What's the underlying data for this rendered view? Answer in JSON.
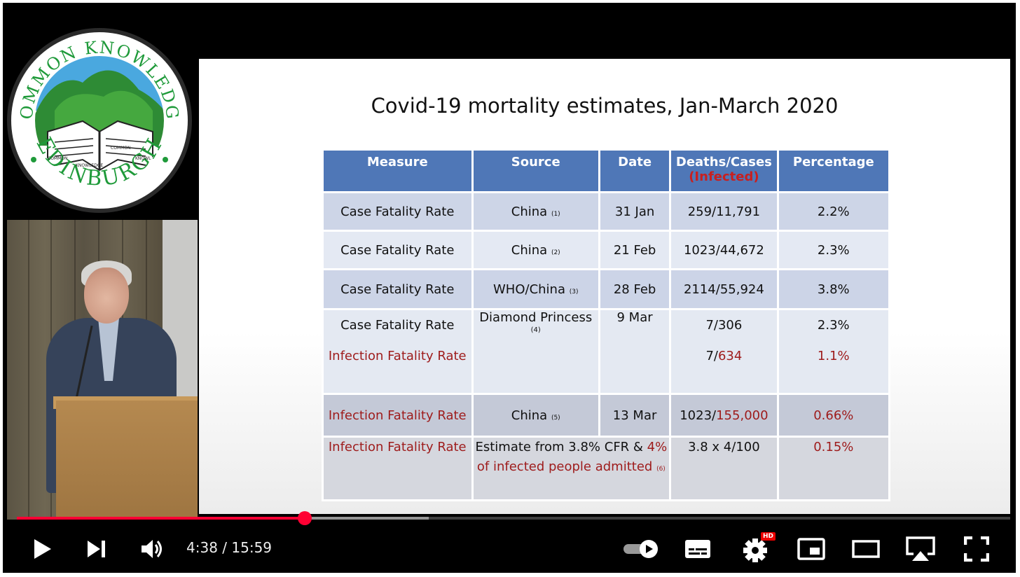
{
  "player": {
    "time_current": "4:38",
    "time_separator": " / ",
    "time_total": "15:59",
    "progress": 0.29,
    "buffered": 0.415,
    "quality_badge": "HD",
    "accent_color": "#ff0033",
    "icons": [
      "play-icon",
      "next-icon",
      "volume-icon",
      "autoplay-toggle-icon",
      "subtitles-icon",
      "settings-icon",
      "miniplayer-icon",
      "theater-icon",
      "airplay-icon",
      "fullscreen-icon"
    ]
  },
  "logo": {
    "top_text": "COMMON KNOWLEDGE",
    "bottom_text": "EDINBURGH",
    "book_words": [
      "COMMON",
      "KNOWLEDGE",
      "COMMON",
      "KNOWL"
    ]
  },
  "slide": {
    "title": "Covid-19 mortality estimates, Jan-March 2020",
    "headers": {
      "measure": "Measure",
      "source": "Source",
      "date": "Date",
      "deaths_cases": "Deaths/Cases",
      "infected": "(Infected)",
      "percentage": "Percentage"
    },
    "rows": [
      {
        "measure": "Case Fatality Rate",
        "source": "China",
        "ref": "(1)",
        "date": "31 Jan",
        "deaths_cases": "259/11,791",
        "percentage": "2.2%"
      },
      {
        "measure": "Case Fatality Rate",
        "source": "China",
        "ref": "(2)",
        "date": "21 Feb",
        "deaths_cases": "1023/44,672",
        "percentage": "2.3%"
      },
      {
        "measure": "Case Fatality Rate",
        "source": "WHO/China",
        "ref": "(3)",
        "date": "28 Feb",
        "deaths_cases": "2114/55,924",
        "percentage": "3.8%"
      },
      {
        "measure": "Case Fatality Rate",
        "measure2": "Infection Fatality Rate",
        "source": "Diamond Princess",
        "ref": "(4)",
        "date": "9 Mar",
        "deaths_cases": "7/306",
        "deaths2": "7/",
        "infected2": "634",
        "percentage": "2.3%",
        "percentage2": "1.1%"
      },
      {
        "measure": "Infection Fatality Rate",
        "source": "China",
        "ref": "(5)",
        "date": "13 Mar",
        "deaths": "1023/",
        "infected": "155,000",
        "percentage": "0.66%"
      },
      {
        "measure": "Infection Fatality Rate",
        "source_a": "Estimate from 3.8% CFR & ",
        "source_b": "4%",
        "source_c": "of infected people admitted",
        "ref": "(6)",
        "deaths_cases": "3.8 x 4/100",
        "percentage": "0.15%"
      }
    ]
  }
}
